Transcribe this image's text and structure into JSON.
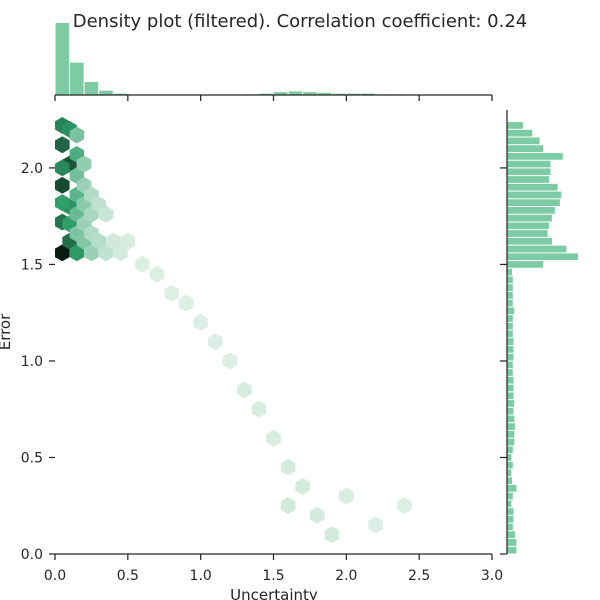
{
  "chart_data": {
    "type": "hexbin",
    "title": "Density plot (filtered). Correlation coefficient: 0.24",
    "xlabel": "Uncertainty",
    "ylabel": "Error",
    "xlim": [
      0.0,
      3.0
    ],
    "ylim": [
      0.0,
      2.3
    ],
    "xticks": [
      "0.0",
      "0.5",
      "1.0",
      "1.5",
      "2.0",
      "2.5",
      "3.0"
    ],
    "yticks": [
      "0.0",
      "0.5",
      "1.0",
      "1.5",
      "2.0"
    ],
    "colors": {
      "hist": "#7ccba2",
      "hex_max": "#0b1a12",
      "hex_mid": "#2f9e6b",
      "hex_min": "#eef8f2"
    },
    "marginal_x": {
      "bin_width": 0.1,
      "bins": [
        {
          "x": 0.0,
          "count": 100
        },
        {
          "x": 0.1,
          "count": 45
        },
        {
          "x": 0.2,
          "count": 18
        },
        {
          "x": 0.3,
          "count": 6
        },
        {
          "x": 0.4,
          "count": 2
        },
        {
          "x": 1.3,
          "count": 1
        },
        {
          "x": 1.4,
          "count": 2
        },
        {
          "x": 1.5,
          "count": 4
        },
        {
          "x": 1.6,
          "count": 5
        },
        {
          "x": 1.7,
          "count": 4
        },
        {
          "x": 1.8,
          "count": 3
        },
        {
          "x": 1.9,
          "count": 2
        },
        {
          "x": 2.0,
          "count": 2
        },
        {
          "x": 2.1,
          "count": 2
        },
        {
          "x": 2.2,
          "count": 1
        },
        {
          "x": 2.3,
          "count": 1
        }
      ]
    },
    "marginal_y": {
      "bin_width": 0.04,
      "bins": [
        {
          "y": 0.0,
          "count": 13
        },
        {
          "y": 0.04,
          "count": 13
        },
        {
          "y": 0.08,
          "count": 11
        },
        {
          "y": 0.12,
          "count": 8
        },
        {
          "y": 0.16,
          "count": 9
        },
        {
          "y": 0.2,
          "count": 9
        },
        {
          "y": 0.24,
          "count": 6
        },
        {
          "y": 0.28,
          "count": 8
        },
        {
          "y": 0.32,
          "count": 13
        },
        {
          "y": 0.36,
          "count": 7
        },
        {
          "y": 0.4,
          "count": 6
        },
        {
          "y": 0.44,
          "count": 8
        },
        {
          "y": 0.48,
          "count": 6
        },
        {
          "y": 0.52,
          "count": 8
        },
        {
          "y": 0.56,
          "count": 10
        },
        {
          "y": 0.6,
          "count": 10
        },
        {
          "y": 0.64,
          "count": 11
        },
        {
          "y": 0.68,
          "count": 10
        },
        {
          "y": 0.72,
          "count": 9
        },
        {
          "y": 0.76,
          "count": 10
        },
        {
          "y": 0.8,
          "count": 9
        },
        {
          "y": 0.84,
          "count": 9
        },
        {
          "y": 0.88,
          "count": 9
        },
        {
          "y": 0.92,
          "count": 8
        },
        {
          "y": 0.96,
          "count": 8
        },
        {
          "y": 1.0,
          "count": 9
        },
        {
          "y": 1.04,
          "count": 9
        },
        {
          "y": 1.08,
          "count": 9
        },
        {
          "y": 1.12,
          "count": 8
        },
        {
          "y": 1.16,
          "count": 8
        },
        {
          "y": 1.2,
          "count": 8
        },
        {
          "y": 1.24,
          "count": 10
        },
        {
          "y": 1.28,
          "count": 8
        },
        {
          "y": 1.32,
          "count": 8
        },
        {
          "y": 1.36,
          "count": 8
        },
        {
          "y": 1.4,
          "count": 8
        },
        {
          "y": 1.44,
          "count": 7
        },
        {
          "y": 1.48,
          "count": 50
        },
        {
          "y": 1.52,
          "count": 98
        },
        {
          "y": 1.56,
          "count": 82
        },
        {
          "y": 1.6,
          "count": 62
        },
        {
          "y": 1.64,
          "count": 56
        },
        {
          "y": 1.68,
          "count": 58
        },
        {
          "y": 1.72,
          "count": 62
        },
        {
          "y": 1.76,
          "count": 66
        },
        {
          "y": 1.8,
          "count": 73
        },
        {
          "y": 1.84,
          "count": 75
        },
        {
          "y": 1.88,
          "count": 70
        },
        {
          "y": 1.92,
          "count": 58
        },
        {
          "y": 1.96,
          "count": 60
        },
        {
          "y": 2.0,
          "count": 60
        },
        {
          "y": 2.04,
          "count": 77
        },
        {
          "y": 2.08,
          "count": 50
        },
        {
          "y": 2.12,
          "count": 45
        },
        {
          "y": 2.16,
          "count": 35
        },
        {
          "y": 2.2,
          "count": 22
        }
      ]
    },
    "hexbins": {
      "hex_width": 0.1,
      "cells": [
        {
          "x": 0.05,
          "y": 1.56,
          "d": 1.0
        },
        {
          "x": 0.05,
          "y": 2.12,
          "d": 0.72
        },
        {
          "x": 0.05,
          "y": 1.91,
          "d": 0.82
        },
        {
          "x": 0.1,
          "y": 2.02,
          "d": 0.78
        },
        {
          "x": 0.05,
          "y": 2.22,
          "d": 0.6
        },
        {
          "x": 0.1,
          "y": 1.62,
          "d": 0.68
        },
        {
          "x": 0.05,
          "y": 1.72,
          "d": 0.65
        },
        {
          "x": 0.1,
          "y": 2.2,
          "d": 0.55
        },
        {
          "x": 0.05,
          "y": 2.0,
          "d": 0.58
        },
        {
          "x": 0.1,
          "y": 1.8,
          "d": 0.55
        },
        {
          "x": 0.05,
          "y": 1.82,
          "d": 0.5
        },
        {
          "x": 0.1,
          "y": 1.71,
          "d": 0.5
        },
        {
          "x": 0.15,
          "y": 1.56,
          "d": 0.52
        },
        {
          "x": 0.15,
          "y": 2.07,
          "d": 0.42
        },
        {
          "x": 0.15,
          "y": 1.86,
          "d": 0.38
        },
        {
          "x": 0.15,
          "y": 1.76,
          "d": 0.35
        },
        {
          "x": 0.15,
          "y": 1.96,
          "d": 0.32
        },
        {
          "x": 0.15,
          "y": 1.66,
          "d": 0.3
        },
        {
          "x": 0.15,
          "y": 2.17,
          "d": 0.3
        },
        {
          "x": 0.2,
          "y": 1.62,
          "d": 0.28
        },
        {
          "x": 0.2,
          "y": 1.81,
          "d": 0.26
        },
        {
          "x": 0.2,
          "y": 2.02,
          "d": 0.24
        },
        {
          "x": 0.2,
          "y": 1.71,
          "d": 0.22
        },
        {
          "x": 0.2,
          "y": 1.91,
          "d": 0.22
        },
        {
          "x": 0.25,
          "y": 1.56,
          "d": 0.22
        },
        {
          "x": 0.25,
          "y": 1.76,
          "d": 0.18
        },
        {
          "x": 0.25,
          "y": 1.86,
          "d": 0.16
        },
        {
          "x": 0.25,
          "y": 1.66,
          "d": 0.16
        },
        {
          "x": 0.3,
          "y": 1.62,
          "d": 0.15
        },
        {
          "x": 0.3,
          "y": 1.81,
          "d": 0.12
        },
        {
          "x": 0.35,
          "y": 1.56,
          "d": 0.12
        },
        {
          "x": 0.35,
          "y": 1.76,
          "d": 0.1
        },
        {
          "x": 0.4,
          "y": 1.62,
          "d": 0.08
        },
        {
          "x": 0.45,
          "y": 1.56,
          "d": 0.07
        },
        {
          "x": 0.5,
          "y": 1.62,
          "d": 0.06
        },
        {
          "x": 0.6,
          "y": 1.5,
          "d": 0.05
        },
        {
          "x": 0.7,
          "y": 1.45,
          "d": 0.05
        },
        {
          "x": 0.8,
          "y": 1.35,
          "d": 0.05
        },
        {
          "x": 0.9,
          "y": 1.3,
          "d": 0.05
        },
        {
          "x": 1.0,
          "y": 1.2,
          "d": 0.05
        },
        {
          "x": 1.1,
          "y": 1.1,
          "d": 0.05
        },
        {
          "x": 1.2,
          "y": 1.0,
          "d": 0.05
        },
        {
          "x": 1.3,
          "y": 0.85,
          "d": 0.06
        },
        {
          "x": 1.4,
          "y": 0.75,
          "d": 0.06
        },
        {
          "x": 1.5,
          "y": 0.6,
          "d": 0.06
        },
        {
          "x": 1.6,
          "y": 0.45,
          "d": 0.07
        },
        {
          "x": 1.6,
          "y": 0.25,
          "d": 0.08
        },
        {
          "x": 1.7,
          "y": 0.35,
          "d": 0.07
        },
        {
          "x": 1.8,
          "y": 0.2,
          "d": 0.07
        },
        {
          "x": 1.9,
          "y": 0.1,
          "d": 0.07
        },
        {
          "x": 2.0,
          "y": 0.3,
          "d": 0.06
        },
        {
          "x": 2.2,
          "y": 0.15,
          "d": 0.05
        },
        {
          "x": 2.4,
          "y": 0.25,
          "d": 0.05
        }
      ]
    }
  }
}
